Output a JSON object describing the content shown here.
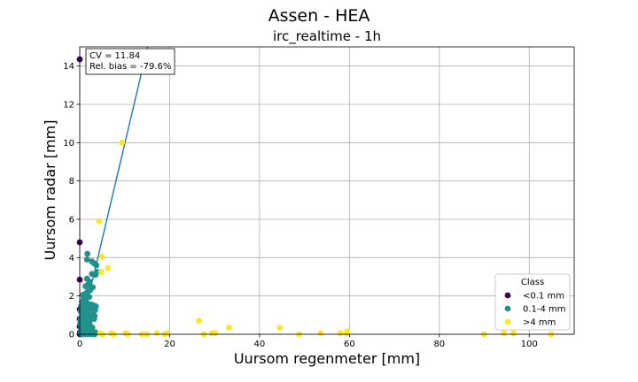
{
  "figure": {
    "suptitle": "Assen - HEA",
    "title": "irc_realtime - 1h"
  },
  "stats": {
    "cv": "CV = 11.84",
    "bias": "Rel. bias = -79.6%"
  },
  "legend": {
    "title": "Class",
    "placement": "lower-right"
  },
  "chart_data": {
    "type": "scatter",
    "title": "irc_realtime - 1h",
    "xlabel": "Uursom regenmeter [mm]",
    "ylabel": "Uursom radar [mm]",
    "xlim": [
      0,
      110
    ],
    "ylim": [
      0,
      15
    ],
    "xticks": [
      0,
      20,
      40,
      60,
      80,
      100
    ],
    "yticks": [
      0,
      2,
      4,
      6,
      8,
      10,
      12,
      14
    ],
    "grid": true,
    "fit_line": {
      "x": [
        0,
        15.1
      ],
      "y": [
        0,
        15
      ]
    },
    "series": [
      {
        "name": "<0.1 mm",
        "color": "#440154",
        "points": [
          [
            0.0,
            14.35
          ],
          [
            0.0,
            4.8
          ],
          [
            0.0,
            2.85
          ],
          [
            0.0,
            1.3
          ],
          [
            0.0,
            0.8
          ],
          [
            0.0,
            0.4
          ],
          [
            0.05,
            0.1
          ],
          [
            0.02,
            0.0
          ],
          [
            0.05,
            0.05
          ]
        ]
      },
      {
        "name": "0.1-4 mm",
        "color": "#21918c",
        "points": [
          [
            1.7,
            4.2
          ],
          [
            1.6,
            3.9
          ],
          [
            2.7,
            3.8
          ],
          [
            3.2,
            3.7
          ],
          [
            3.7,
            3.6
          ],
          [
            3.5,
            3.1
          ],
          [
            2.7,
            3.15
          ],
          [
            3.8,
            3.25
          ],
          [
            1.6,
            2.9
          ],
          [
            2.2,
            2.75
          ],
          [
            1.9,
            2.6
          ],
          [
            2.9,
            2.45
          ],
          [
            1.3,
            2.5
          ],
          [
            2.3,
            2.3
          ],
          [
            1.7,
            2.2
          ],
          [
            1.2,
            2.1
          ],
          [
            0.7,
            2.05
          ],
          [
            0.9,
            1.9
          ],
          [
            1.4,
            1.85
          ],
          [
            2.1,
            1.95
          ],
          [
            0.5,
            1.7
          ],
          [
            1.1,
            1.65
          ],
          [
            1.8,
            1.6
          ],
          [
            2.6,
            1.55
          ],
          [
            3.1,
            1.5
          ],
          [
            3.6,
            1.45
          ],
          [
            0.3,
            1.45
          ],
          [
            0.8,
            1.4
          ],
          [
            1.5,
            1.35
          ],
          [
            2.4,
            1.3
          ],
          [
            3.4,
            1.25
          ],
          [
            0.2,
            1.2
          ],
          [
            0.6,
            1.15
          ],
          [
            1.2,
            1.1
          ],
          [
            2.0,
            1.05
          ],
          [
            2.9,
            1.0
          ],
          [
            3.3,
            0.95
          ],
          [
            0.4,
            0.9
          ],
          [
            1.0,
            0.85
          ],
          [
            1.7,
            0.9
          ],
          [
            2.5,
            0.85
          ],
          [
            3.2,
            0.8
          ],
          [
            0.2,
            0.75
          ],
          [
            0.7,
            0.7
          ],
          [
            1.3,
            0.65
          ],
          [
            2.2,
            0.6
          ],
          [
            0.1,
            0.55
          ],
          [
            0.5,
            0.5
          ],
          [
            1.1,
            0.45
          ],
          [
            1.9,
            0.4
          ],
          [
            2.8,
            0.35
          ],
          [
            0.3,
            0.3
          ],
          [
            0.9,
            0.25
          ],
          [
            1.5,
            0.2
          ],
          [
            2.4,
            0.15
          ],
          [
            3.5,
            0.1
          ],
          [
            0.2,
            0.1
          ],
          [
            0.6,
            0.05
          ],
          [
            1.2,
            0.05
          ],
          [
            1.8,
            0.0
          ],
          [
            2.6,
            0.0
          ],
          [
            3.3,
            0.0
          ],
          [
            0.4,
            0.0
          ],
          [
            1.0,
            0.0
          ]
        ]
      },
      {
        "name": ">4 mm",
        "color": "#fde725",
        "points": [
          [
            9.4,
            10.0
          ],
          [
            4.3,
            5.9
          ],
          [
            4.9,
            4.05
          ],
          [
            6.3,
            3.45
          ],
          [
            4.8,
            3.25
          ],
          [
            26.5,
            0.7
          ],
          [
            33.2,
            0.35
          ],
          [
            44.5,
            0.35
          ],
          [
            59.5,
            0.15
          ],
          [
            58.0,
            0.05
          ],
          [
            4.5,
            0.05
          ],
          [
            5.1,
            0.0
          ],
          [
            7.0,
            0.05
          ],
          [
            7.6,
            0.0
          ],
          [
            10.2,
            0.05
          ],
          [
            10.7,
            0.0
          ],
          [
            13.8,
            0.0
          ],
          [
            14.9,
            0.0
          ],
          [
            17.2,
            0.05
          ],
          [
            18.9,
            0.0
          ],
          [
            19.5,
            0.05
          ],
          [
            27.6,
            0.0
          ],
          [
            29.4,
            0.05
          ],
          [
            30.1,
            0.05
          ],
          [
            48.8,
            0.0
          ],
          [
            53.6,
            0.05
          ],
          [
            59.4,
            0.05
          ],
          [
            89.9,
            0.0
          ],
          [
            94.4,
            0.05
          ],
          [
            96.5,
            0.05
          ],
          [
            104.9,
            0.0
          ]
        ]
      }
    ]
  }
}
